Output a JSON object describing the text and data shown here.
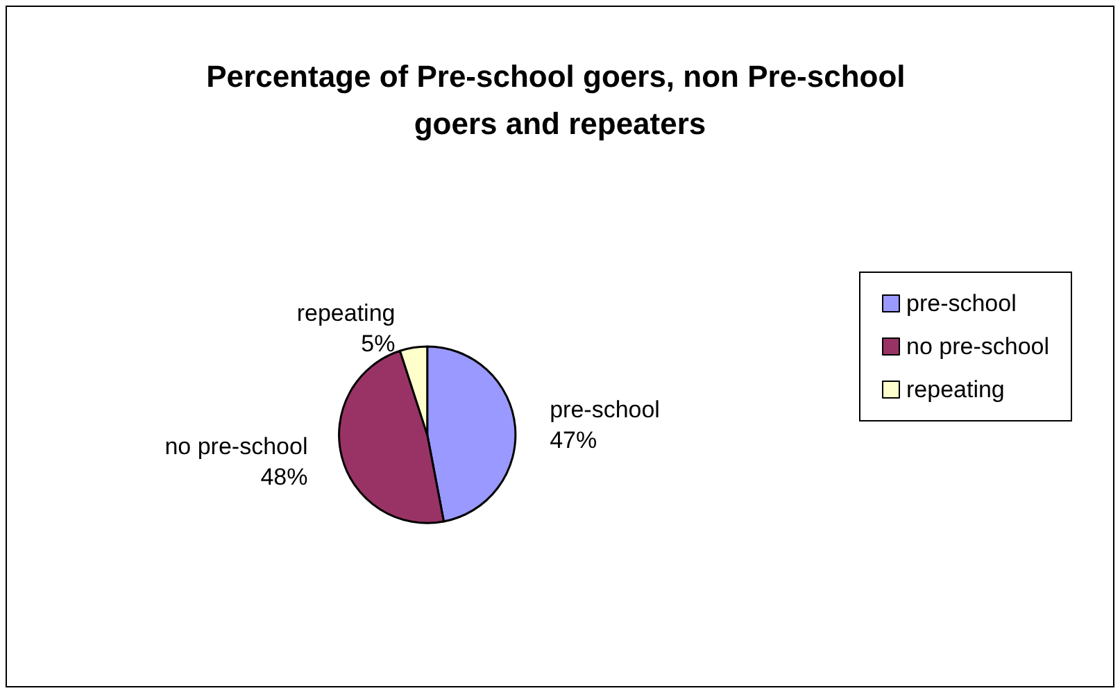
{
  "chart_data": {
    "type": "pie",
    "title": "Percentage of Pre-school goers, non Pre-school goers and repeaters",
    "categories": [
      "pre-school",
      "no pre-school",
      "repeating"
    ],
    "values": [
      47,
      48,
      5
    ],
    "value_labels": [
      "47%",
      "48%",
      "5%"
    ],
    "colors": [
      "#9999ff",
      "#993366",
      "#ffffcc"
    ],
    "legend": "right"
  }
}
